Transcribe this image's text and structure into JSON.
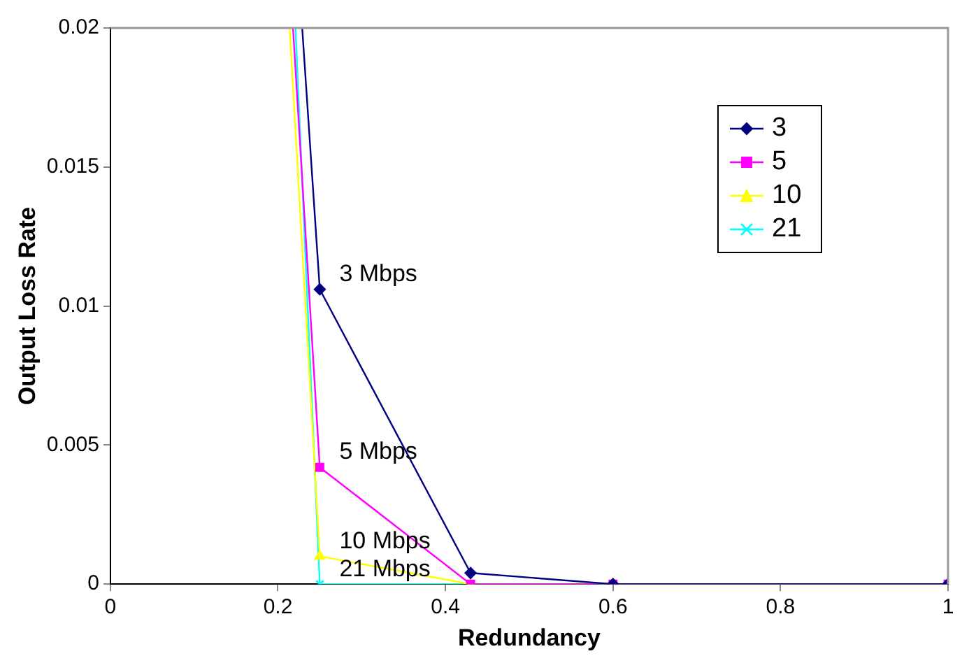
{
  "chart_data": {
    "type": "line",
    "xlabel": "Redundancy",
    "ylabel": "Output Loss Rate",
    "series": [
      {
        "name": "3",
        "color": "#000080",
        "marker": "diamond",
        "x": [
          0.229,
          0.25,
          0.43,
          0.6,
          1
        ],
        "values": [
          0.02,
          0.0106,
          0.0004,
          0,
          0
        ]
      },
      {
        "name": "5",
        "color": "#ff00ff",
        "marker": "square",
        "x": [
          0.218,
          0.25,
          0.43,
          0.6,
          1
        ],
        "values": [
          0.02,
          0.0042,
          0,
          0,
          0
        ]
      },
      {
        "name": "10",
        "color": "#ffff00",
        "marker": "triangle",
        "x": [
          0.214,
          0.25,
          0.43,
          0.6,
          1
        ],
        "values": [
          0.02,
          0.001,
          0,
          0,
          0
        ]
      },
      {
        "name": "21",
        "color": "#00ffff",
        "marker": "cross",
        "x": [
          0.221,
          0.25,
          0.43,
          0.6,
          1
        ],
        "values": [
          0.02,
          0,
          0,
          0,
          0
        ]
      }
    ],
    "xlim": [
      0,
      1
    ],
    "xticks": [
      0,
      0.2,
      0.4,
      0.6,
      0.8,
      1
    ],
    "ylim": [
      0,
      0.02
    ],
    "yticks": [
      0,
      0.005,
      0.01,
      0.015,
      0.02
    ],
    "legend": "top right",
    "annotations": [
      "3 Mbps",
      "5 Mbps",
      "10 Mbps",
      "21 Mbps"
    ]
  }
}
